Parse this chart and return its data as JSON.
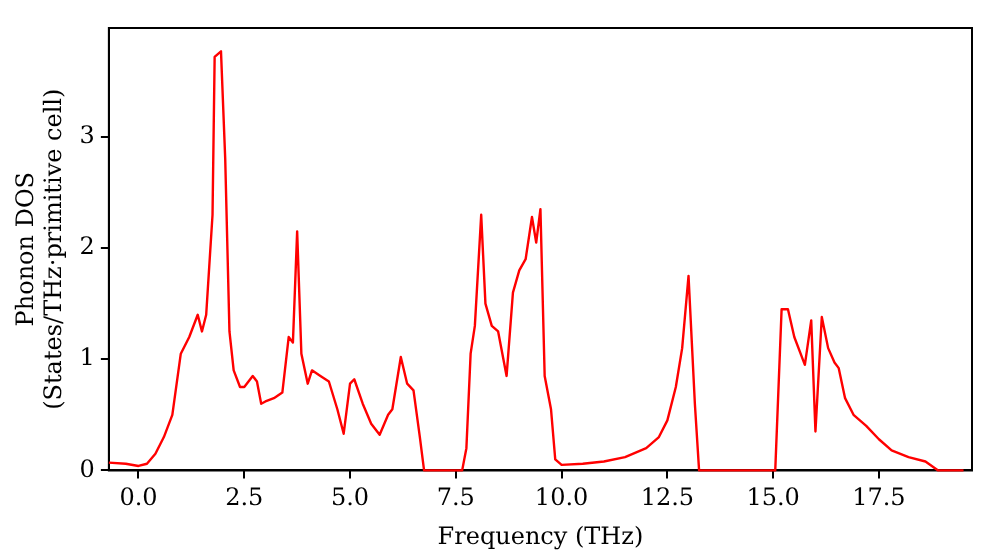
{
  "chart_data": {
    "type": "line",
    "xlabel": "Frequency (THz)",
    "ylabel": "Phonon DOS\n(States/THz·primitive cell)",
    "xlim": [
      -0.7,
      19.7
    ],
    "ylim": [
      0,
      3.98
    ],
    "xticks": [
      {
        "value": 0,
        "label": "0.0"
      },
      {
        "value": 2.5,
        "label": "2.5"
      },
      {
        "value": 5,
        "label": "5.0"
      },
      {
        "value": 7.5,
        "label": "7.5"
      },
      {
        "value": 10,
        "label": "10.0"
      },
      {
        "value": 12.5,
        "label": "12.5"
      },
      {
        "value": 15,
        "label": "15.0"
      },
      {
        "value": 17.5,
        "label": "17.5"
      }
    ],
    "yticks": [
      0,
      1,
      2,
      3
    ],
    "grid": false,
    "legend": false,
    "marker": "none",
    "line_style": "solid",
    "series": [
      {
        "color": "#ff0000",
        "x": [
          -0.7,
          -0.3,
          0,
          0.2,
          0.4,
          0.6,
          0.8,
          1.0,
          1.2,
          1.4,
          1.5,
          1.6,
          1.75,
          1.8,
          1.95,
          2.05,
          2.15,
          2.25,
          2.4,
          2.5,
          2.6,
          2.7,
          2.8,
          2.9,
          3.0,
          3.2,
          3.4,
          3.55,
          3.65,
          3.75,
          3.85,
          4.0,
          4.1,
          4.3,
          4.5,
          4.7,
          4.85,
          5.0,
          5.1,
          5.3,
          5.5,
          5.7,
          5.9,
          6.0,
          6.2,
          6.35,
          6.5,
          6.65,
          6.75,
          7.65,
          7.75,
          7.85,
          7.95,
          8.1,
          8.2,
          8.35,
          8.5,
          8.7,
          8.85,
          9.0,
          9.15,
          9.3,
          9.4,
          9.5,
          9.6,
          9.75,
          9.85,
          10.0,
          10.5,
          11.0,
          11.5,
          12.0,
          12.3,
          12.5,
          12.7,
          12.85,
          13.0,
          13.15,
          13.25,
          15.05,
          15.2,
          15.35,
          15.5,
          15.75,
          15.9,
          16.0,
          16.15,
          16.3,
          16.45,
          16.55,
          16.7,
          16.9,
          17.2,
          17.5,
          17.8,
          18.2,
          18.6,
          18.9,
          19.5
        ],
        "values": [
          0.07,
          0.06,
          0.04,
          0.06,
          0.15,
          0.3,
          0.5,
          1.05,
          1.2,
          1.4,
          1.25,
          1.4,
          2.3,
          3.72,
          3.77,
          2.8,
          1.25,
          0.9,
          0.75,
          0.75,
          0.8,
          0.85,
          0.8,
          0.6,
          0.62,
          0.65,
          0.7,
          1.2,
          1.15,
          2.15,
          1.05,
          0.78,
          0.9,
          0.85,
          0.8,
          0.55,
          0.33,
          0.78,
          0.82,
          0.6,
          0.42,
          0.32,
          0.5,
          0.55,
          1.02,
          0.78,
          0.72,
          0.3,
          0,
          0,
          0.2,
          1.05,
          1.3,
          2.3,
          1.5,
          1.3,
          1.25,
          0.85,
          1.6,
          1.8,
          1.9,
          2.28,
          2.05,
          2.35,
          0.85,
          0.55,
          0.1,
          0.05,
          0.06,
          0.08,
          0.12,
          0.2,
          0.3,
          0.45,
          0.75,
          1.1,
          1.75,
          0.6,
          0,
          0,
          1.45,
          1.45,
          1.2,
          0.95,
          1.35,
          0.35,
          1.38,
          1.1,
          0.97,
          0.92,
          0.65,
          0.5,
          0.4,
          0.28,
          0.18,
          0.12,
          0.08,
          0,
          0
        ]
      }
    ]
  }
}
